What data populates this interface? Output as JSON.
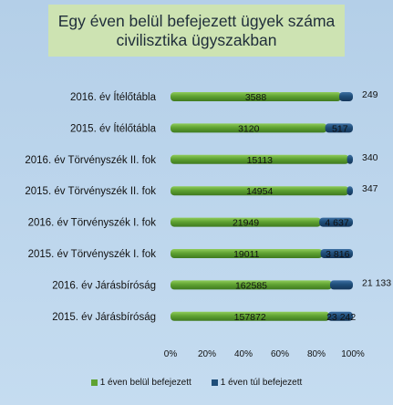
{
  "chart_data": {
    "type": "bar",
    "orientation": "horizontal",
    "stacking": "percent",
    "title_lines": [
      "Egy éven belül befejezett ügyek száma",
      "civilisztika ügyszakban"
    ],
    "categories": [
      "2016. év Ítélőtábla",
      "2015. év Ítélőtábla",
      "2016. év Törvényszék II. fok",
      "2015. év Törvényszék II. fok",
      "2016. év Törvényszék I. fok",
      "2015. év Törvényszék I. fok",
      "2016. év Járásbíróság",
      "2015. év Járásbíróság"
    ],
    "series": [
      {
        "name": "1 éven belül befejezett",
        "color": "#5fa232",
        "values": [
          3588,
          3120,
          15113,
          14954,
          21949,
          19011,
          162585,
          157872
        ],
        "value_labels": [
          "3588",
          "3120",
          "15113",
          "14954",
          "21949",
          "19011",
          "162585",
          "157872"
        ]
      },
      {
        "name": "1 éven túl befejezett",
        "color": "#1f4e79",
        "values": [
          249,
          517,
          340,
          347,
          4637,
          3816,
          21133,
          23242
        ],
        "value_labels": [
          "249",
          "517",
          "340",
          "347",
          "4 637",
          "3 816",
          "21 133",
          "23 242"
        ]
      }
    ],
    "x_ticks": [
      "0%",
      "20%",
      "40%",
      "60%",
      "80%",
      "100%"
    ],
    "xlim": [
      0,
      100
    ],
    "legend_position": "bottom",
    "grid": false
  }
}
